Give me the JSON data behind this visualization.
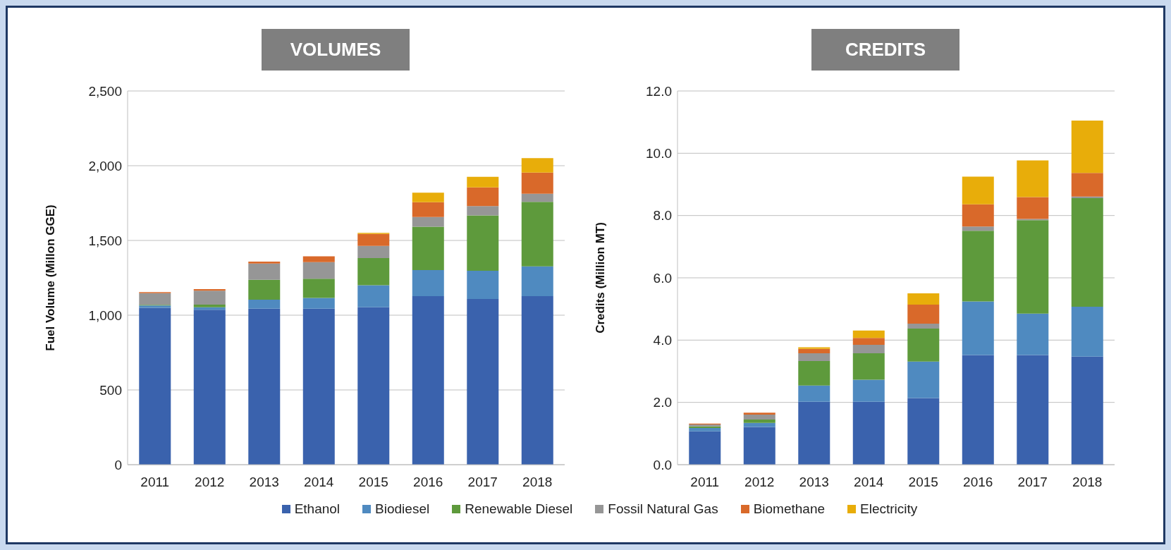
{
  "chart_data": [
    {
      "type": "bar",
      "title": "VOLUMES",
      "ylabel": "Fuel Volume (Millon GGE)",
      "categories": [
        "2011",
        "2012",
        "2013",
        "2014",
        "2015",
        "2016",
        "2017",
        "2018"
      ],
      "stacked": true,
      "ylim": [
        0,
        2500
      ],
      "yticks": [
        0,
        500,
        {
          "value": 1000,
          "label": "1,000"
        },
        {
          "value": 1500,
          "label": "1,500"
        },
        {
          "value": 2000,
          "label": "2,000"
        },
        {
          "value": 2500,
          "label": "2,500"
        }
      ],
      "grid": "y",
      "legend": "bottom",
      "series": [
        {
          "name": "Ethanol",
          "color": "#3a62ad",
          "values": [
            1050,
            1037,
            1044,
            1044,
            1053,
            1127,
            1108,
            1127
          ]
        },
        {
          "name": "Biodiesel",
          "color": "#4f8ac0",
          "values": [
            15,
            16,
            60,
            71,
            147,
            175,
            189,
            200
          ]
        },
        {
          "name": "Renewable Diesel",
          "color": "#5e9a3c",
          "values": [
            5,
            18,
            133,
            129,
            182,
            290,
            371,
            431
          ]
        },
        {
          "name": "Fossil Natural Gas",
          "color": "#969696",
          "values": [
            77,
            93,
            109,
            111,
            81,
            65,
            62,
            55
          ]
        },
        {
          "name": "Biomethane",
          "color": "#d9692a",
          "values": [
            7,
            11,
            13,
            39,
            81,
            99,
            125,
            141
          ]
        },
        {
          "name": "Electricity",
          "color": "#e8ad0a",
          "values": [
            0,
            0,
            0,
            0,
            7,
            64,
            71,
            97
          ]
        }
      ]
    },
    {
      "type": "bar",
      "title": "CREDITS",
      "ylabel": "Credits (Million  MT)",
      "categories": [
        "2011",
        "2012",
        "2013",
        "2014",
        "2015",
        "2016",
        "2017",
        "2018"
      ],
      "stacked": true,
      "ylim": [
        0,
        12
      ],
      "yticks": [
        {
          "value": 0,
          "label": "0.0"
        },
        {
          "value": 2,
          "label": "2.0"
        },
        {
          "value": 4,
          "label": "4.0"
        },
        {
          "value": 6,
          "label": "6.0"
        },
        {
          "value": 8,
          "label": "8.0"
        },
        {
          "value": 10,
          "label": "10.0"
        },
        {
          "value": 12,
          "label": "12.0"
        }
      ],
      "grid": "y",
      "legend": "bottom",
      "series": [
        {
          "name": "Ethanol",
          "color": "#3a62ad",
          "values": [
            1.07,
            1.21,
            2.02,
            2.02,
            2.14,
            3.52,
            3.52,
            3.47
          ]
        },
        {
          "name": "Biodiesel",
          "color": "#4f8ac0",
          "values": [
            0.11,
            0.13,
            0.52,
            0.71,
            1.17,
            1.72,
            1.33,
            1.6
          ]
        },
        {
          "name": "Renewable Diesel",
          "color": "#5e9a3c",
          "values": [
            0.05,
            0.11,
            0.79,
            0.85,
            1.06,
            2.27,
            3.0,
            3.49
          ]
        },
        {
          "name": "Fossil Natural Gas",
          "color": "#969696",
          "values": [
            0.06,
            0.16,
            0.25,
            0.27,
            0.16,
            0.14,
            0.04,
            0.05
          ]
        },
        {
          "name": "Biomethane",
          "color": "#d9692a",
          "values": [
            0.03,
            0.06,
            0.14,
            0.22,
            0.61,
            0.71,
            0.7,
            0.76
          ]
        },
        {
          "name": "Electricity",
          "color": "#e8ad0a",
          "values": [
            0,
            0,
            0.05,
            0.24,
            0.36,
            0.89,
            1.18,
            1.68
          ]
        }
      ]
    }
  ]
}
